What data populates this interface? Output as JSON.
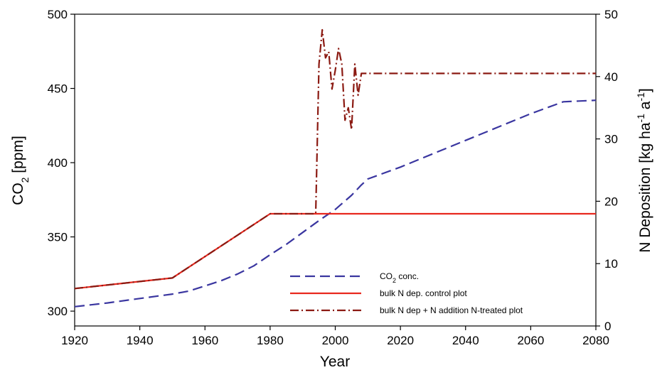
{
  "chart_data": {
    "type": "line",
    "x_label": "Year",
    "y_left_label": {
      "base": "CO",
      "sub": "2",
      "rest": " [ppm]"
    },
    "y_right_label": {
      "t1": "N Deposition [kg ha",
      "sup1": "-1",
      "t2": " a",
      "sup2": "-1",
      "t3": "]"
    },
    "x_range": [
      1920,
      2080
    ],
    "y_left_range": [
      290,
      500
    ],
    "y_right_range": [
      0,
      50
    ],
    "x_ticks": [
      1920,
      1940,
      1960,
      1980,
      2000,
      2020,
      2040,
      2060,
      2080
    ],
    "y_left_ticks": [
      300,
      350,
      400,
      450,
      500
    ],
    "y_right_ticks": [
      0,
      10,
      20,
      30,
      40,
      50
    ],
    "grid": false,
    "legend_position": "bottom-right",
    "series": [
      {
        "name": {
          "base": "CO",
          "sub": "2",
          "rest": " conc."
        },
        "axis": "left",
        "color": "#3a36a0",
        "style": "dashed",
        "points": [
          [
            1920,
            303
          ],
          [
            1930,
            305.5
          ],
          [
            1940,
            308.5
          ],
          [
            1950,
            311.5
          ],
          [
            1955,
            313.5
          ],
          [
            1960,
            317
          ],
          [
            1965,
            320.5
          ],
          [
            1970,
            325
          ],
          [
            1975,
            330.5
          ],
          [
            1980,
            338
          ],
          [
            1985,
            345
          ],
          [
            1990,
            353
          ],
          [
            1995,
            361
          ],
          [
            2000,
            368.5
          ],
          [
            2005,
            378
          ],
          [
            2008,
            385
          ],
          [
            2010,
            389
          ],
          [
            2020,
            397
          ],
          [
            2030,
            406
          ],
          [
            2040,
            415
          ],
          [
            2050,
            424
          ],
          [
            2060,
            433
          ],
          [
            2070,
            441
          ],
          [
            2080,
            442
          ]
        ]
      },
      {
        "name": "bulk N dep. control plot",
        "axis": "right",
        "color": "#e8281e",
        "style": "solid",
        "points": [
          [
            1920,
            6
          ],
          [
            1950,
            7.7
          ],
          [
            1980,
            18
          ],
          [
            2080,
            18
          ]
        ]
      },
      {
        "name": "bulk N dep + N addition N-treated plot",
        "axis": "right",
        "color": "#8b1a12",
        "style": "dashdot",
        "points": [
          [
            1920,
            6
          ],
          [
            1950,
            7.7
          ],
          [
            1980,
            18
          ],
          [
            1994,
            18
          ],
          [
            1995,
            42
          ],
          [
            1996,
            47.5
          ],
          [
            1997,
            43
          ],
          [
            1998,
            44
          ],
          [
            1999,
            38
          ],
          [
            2000,
            41
          ],
          [
            2001,
            44.5
          ],
          [
            2002,
            42
          ],
          [
            2003,
            33
          ],
          [
            2004,
            35
          ],
          [
            2005,
            31.5
          ],
          [
            2006,
            42
          ],
          [
            2007,
            37
          ],
          [
            2008,
            40.5
          ],
          [
            2080,
            40.5
          ]
        ]
      }
    ]
  }
}
